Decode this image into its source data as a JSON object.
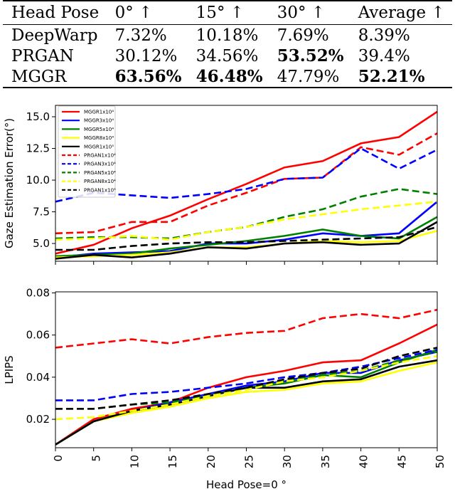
{
  "table": {
    "headers": [
      "Head Pose",
      "0° ↑",
      "15° ↑",
      "30° ↑",
      "Average ↑"
    ],
    "rows": [
      {
        "cells": [
          "DeepWarp",
          "7.32%",
          "10.18%",
          "7.69%",
          "8.39%"
        ],
        "bold": [
          false,
          false,
          false,
          false,
          false
        ]
      },
      {
        "cells": [
          "PRGAN",
          "30.12%",
          "34.56%",
          "53.52%",
          "39.4%"
        ],
        "bold": [
          false,
          false,
          false,
          true,
          false
        ]
      },
      {
        "cells": [
          "MGGR",
          "63.56%",
          "46.48%",
          "47.79%",
          "52.21%"
        ],
        "bold": [
          false,
          true,
          true,
          false,
          true
        ]
      }
    ]
  },
  "chart_data": [
    {
      "type": "line",
      "title": "",
      "xlabel": "",
      "ylabel": "Gaze Estimation Error(°)",
      "x": [
        0,
        5,
        10,
        15,
        20,
        25,
        30,
        35,
        40,
        45,
        50
      ],
      "xticks": [
        "0",
        "5",
        "10",
        "15",
        "20",
        "25",
        "30",
        "35",
        "40",
        "45",
        "50"
      ],
      "yticks": [
        "5.0",
        "7.5",
        "10.0",
        "12.5",
        "15.0"
      ],
      "xlim": [
        0,
        50
      ],
      "ylim": [
        3.6,
        15.9
      ],
      "legend_position": "top-left",
      "series": [
        {
          "name": "MGGR1x10⁴",
          "color": "#ff0000",
          "dash": "solid",
          "values": [
            4.2,
            4.9,
            6.2,
            7.2,
            8.5,
            9.7,
            11.0,
            11.5,
            12.9,
            13.4,
            15.4
          ]
        },
        {
          "name": "MGGR3x10⁴",
          "color": "#0000ff",
          "dash": "solid",
          "values": [
            3.9,
            4.2,
            4.3,
            4.4,
            5.0,
            5.0,
            5.3,
            5.8,
            5.6,
            5.8,
            8.3
          ]
        },
        {
          "name": "MGGR5x10⁴",
          "color": "#008000",
          "dash": "solid",
          "values": [
            4.0,
            4.1,
            4.2,
            4.6,
            4.9,
            5.2,
            5.6,
            6.1,
            5.6,
            5.4,
            7.1
          ]
        },
        {
          "name": "MGGR8x10⁴",
          "color": "#ffff00",
          "dash": "solid",
          "values": [
            3.9,
            4.0,
            4.1,
            4.3,
            4.7,
            4.7,
            5.0,
            5.2,
            5.1,
            5.2,
            6.0
          ]
        },
        {
          "name": "MGGR1x10⁵",
          "color": "#000000",
          "dash": "solid",
          "values": [
            3.8,
            4.1,
            3.9,
            4.2,
            4.7,
            4.6,
            5.0,
            5.1,
            4.9,
            5.0,
            6.7
          ]
        },
        {
          "name": "PRGAN1x10⁴",
          "color": "#ff0000",
          "dash": "dashed",
          "values": [
            5.8,
            5.9,
            6.7,
            6.7,
            8.0,
            9.0,
            10.1,
            10.2,
            12.6,
            12.0,
            13.7
          ]
        },
        {
          "name": "PRGAN3x10⁴",
          "color": "#0000ff",
          "dash": "dashed",
          "values": [
            8.3,
            9.0,
            8.8,
            8.6,
            8.9,
            9.3,
            10.1,
            10.2,
            12.5,
            10.9,
            12.4
          ]
        },
        {
          "name": "PRGAN5x10⁴",
          "color": "#008000",
          "dash": "dashed",
          "values": [
            5.4,
            5.5,
            5.5,
            5.4,
            5.9,
            6.3,
            7.1,
            7.7,
            8.7,
            9.3,
            8.9
          ]
        },
        {
          "name": "PRGAN8x10⁴",
          "color": "#ffff00",
          "dash": "dashed",
          "values": [
            5.3,
            5.4,
            5.6,
            5.3,
            5.9,
            6.3,
            6.9,
            7.3,
            7.7,
            8.0,
            8.3
          ]
        },
        {
          "name": "PRGAN1x10⁵",
          "color": "#000000",
          "dash": "dashed",
          "values": [
            4.5,
            4.5,
            4.8,
            5.0,
            5.1,
            5.1,
            5.2,
            5.3,
            5.4,
            5.5,
            6.3
          ]
        }
      ]
    },
    {
      "type": "line",
      "title": "",
      "xlabel": "Head Pose=0 °",
      "ylabel": "LPIPS",
      "x": [
        0,
        5,
        10,
        15,
        20,
        25,
        30,
        35,
        40,
        45,
        50
      ],
      "xticks": [
        "0",
        "5",
        "10",
        "15",
        "20",
        "25",
        "30",
        "35",
        "40",
        "45",
        "50"
      ],
      "yticks": [
        "0.02",
        "0.04",
        "0.06",
        "0.08"
      ],
      "xlim": [
        0,
        50
      ],
      "ylim": [
        0.0065,
        0.0805
      ],
      "series": [
        {
          "name": "MGGR1x10⁴",
          "color": "#ff0000",
          "dash": "solid",
          "values": [
            0.008,
            0.02,
            0.025,
            0.028,
            0.035,
            0.04,
            0.043,
            0.047,
            0.048,
            0.056,
            0.065
          ]
        },
        {
          "name": "MGGR3x10⁴",
          "color": "#0000ff",
          "dash": "solid",
          "values": [
            0.008,
            0.019,
            0.024,
            0.028,
            0.032,
            0.036,
            0.038,
            0.042,
            0.042,
            0.048,
            0.052
          ]
        },
        {
          "name": "MGGR5x10⁴",
          "color": "#008000",
          "dash": "solid",
          "values": [
            0.008,
            0.019,
            0.024,
            0.027,
            0.031,
            0.035,
            0.037,
            0.041,
            0.04,
            0.047,
            0.053
          ]
        },
        {
          "name": "MGGR8x10⁴",
          "color": "#ffff00",
          "dash": "solid",
          "values": [
            0.008,
            0.019,
            0.023,
            0.026,
            0.03,
            0.033,
            0.034,
            0.037,
            0.038,
            0.043,
            0.047
          ]
        },
        {
          "name": "MGGR1x10⁵",
          "color": "#000000",
          "dash": "solid",
          "values": [
            0.008,
            0.019,
            0.024,
            0.027,
            0.031,
            0.035,
            0.035,
            0.038,
            0.039,
            0.045,
            0.048
          ]
        },
        {
          "name": "PRGAN1x10⁴",
          "color": "#ff0000",
          "dash": "dashed",
          "values": [
            0.054,
            0.056,
            0.058,
            0.056,
            0.059,
            0.061,
            0.062,
            0.068,
            0.07,
            0.068,
            0.072
          ]
        },
        {
          "name": "PRGAN3x10⁴",
          "color": "#0000ff",
          "dash": "dashed",
          "values": [
            0.029,
            0.029,
            0.032,
            0.033,
            0.035,
            0.037,
            0.04,
            0.042,
            0.045,
            0.049,
            0.053
          ]
        },
        {
          "name": "PRGAN5x10⁴",
          "color": "#008000",
          "dash": "dashed",
          "values": [
            0.025,
            0.025,
            0.027,
            0.028,
            0.031,
            0.035,
            0.038,
            0.041,
            0.043,
            0.048,
            0.052
          ]
        },
        {
          "name": "PRGAN8x10⁴",
          "color": "#ffff00",
          "dash": "dashed",
          "values": [
            0.02,
            0.021,
            0.024,
            0.027,
            0.031,
            0.034,
            0.038,
            0.04,
            0.043,
            0.047,
            0.05
          ]
        },
        {
          "name": "PRGAN1x10⁵",
          "color": "#000000",
          "dash": "dashed",
          "values": [
            0.025,
            0.025,
            0.027,
            0.029,
            0.032,
            0.035,
            0.039,
            0.042,
            0.044,
            0.05,
            0.054
          ]
        }
      ]
    }
  ]
}
